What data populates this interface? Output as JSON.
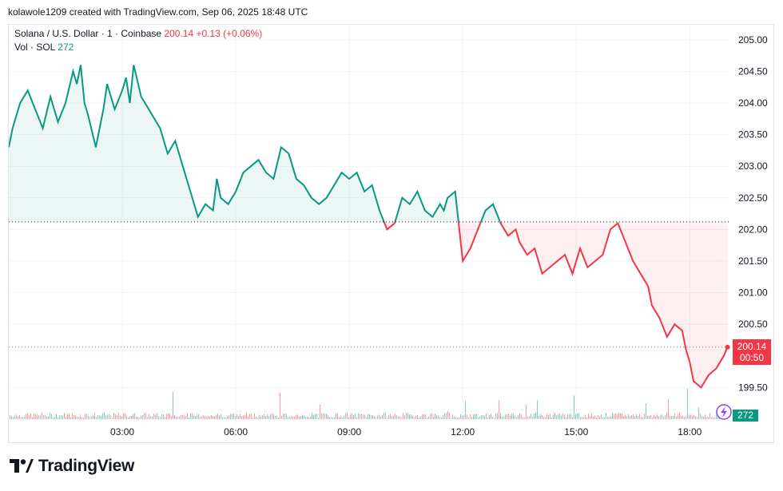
{
  "header": {
    "attribution": "kolawole1209 created with TradingView.com, Sep 06, 2025 18:48 UTC"
  },
  "legend": {
    "symbol": "Solana / U.S. Dollar · 1 · Coinbase",
    "last": "200.14",
    "change": "+0.13 (+0.06%)",
    "vol_label": "Vol · SOL",
    "vol_value": "272"
  },
  "price_tag": {
    "price": "200.14",
    "countdown": "00:50"
  },
  "volume_tag": "272",
  "logo": {
    "text": "TradingView"
  },
  "colors": {
    "up": "#089981",
    "down": "#f23645",
    "grid": "#f0f3fa"
  },
  "chart_data": {
    "type": "line",
    "ylim": [
      199.0,
      205.25
    ],
    "y_ticks": [
      "205.00",
      "204.50",
      "204.00",
      "203.50",
      "203.00",
      "202.50",
      "202.00",
      "201.50",
      "201.00",
      "200.50",
      "199.50"
    ],
    "y_tick_values": [
      205.0,
      204.5,
      204.0,
      203.5,
      203.0,
      202.5,
      202.0,
      201.5,
      201.0,
      200.5,
      199.5
    ],
    "x_ticks": [
      "03:00",
      "06:00",
      "09:00",
      "12:00",
      "15:00",
      "18:00"
    ],
    "x_tick_hours": [
      3,
      6,
      9,
      12,
      15,
      18
    ],
    "xlim_hours": [
      0.0,
      19.05
    ],
    "baseline": 202.12,
    "last_price": 200.14,
    "grid": true,
    "series": [
      {
        "x": [
          0.0,
          0.1,
          0.3,
          0.5,
          0.7,
          0.9,
          1.1,
          1.3,
          1.5,
          1.7,
          1.8,
          1.9,
          2.0,
          2.1,
          2.3,
          2.5,
          2.6,
          2.8,
          3.0,
          3.1,
          3.2,
          3.3,
          3.5,
          3.6,
          3.8,
          4.0,
          4.2,
          4.4,
          4.6,
          4.8,
          5.0,
          5.2,
          5.4,
          5.5,
          5.6,
          5.8,
          6.0,
          6.2,
          6.4,
          6.6,
          6.8,
          7.0,
          7.2,
          7.4,
          7.6,
          7.8,
          8.0,
          8.2,
          8.4,
          8.6,
          8.8,
          9.0,
          9.2,
          9.4,
          9.6,
          9.8,
          10.0,
          10.2,
          10.4,
          10.6,
          10.8,
          11.0,
          11.2,
          11.4,
          11.5,
          11.6,
          11.8,
          12.0,
          12.2,
          12.4,
          12.6,
          12.8,
          13.0,
          13.2,
          13.4,
          13.5,
          13.7,
          13.9,
          14.1,
          14.3,
          14.5,
          14.7,
          14.9,
          15.1,
          15.3,
          15.5,
          15.7,
          15.9,
          16.1,
          16.3,
          16.5,
          16.7,
          16.9,
          17.0,
          17.2,
          17.4,
          17.6,
          17.8,
          17.9,
          18.0,
          18.1,
          18.3,
          18.5,
          18.7,
          18.8,
          18.9,
          19.0
        ],
        "values": [
          203.3,
          203.6,
          204.0,
          204.2,
          203.9,
          203.6,
          204.1,
          203.7,
          204.0,
          204.5,
          204.3,
          204.6,
          204.0,
          203.8,
          203.3,
          203.9,
          204.3,
          203.9,
          204.2,
          204.4,
          204.0,
          204.6,
          204.1,
          204.0,
          203.8,
          203.6,
          203.2,
          203.4,
          203.0,
          202.6,
          202.2,
          202.4,
          202.3,
          202.8,
          202.5,
          202.4,
          202.6,
          202.9,
          203.0,
          203.1,
          202.9,
          202.8,
          203.3,
          203.2,
          202.8,
          202.7,
          202.5,
          202.4,
          202.5,
          202.7,
          202.9,
          202.8,
          202.9,
          202.6,
          202.7,
          202.3,
          202.0,
          202.1,
          202.5,
          202.4,
          202.6,
          202.3,
          202.2,
          202.4,
          202.3,
          202.5,
          202.6,
          201.5,
          201.7,
          202.0,
          202.3,
          202.4,
          202.1,
          201.9,
          202.0,
          201.8,
          201.6,
          201.7,
          201.3,
          201.4,
          201.5,
          201.6,
          201.3,
          201.7,
          201.4,
          201.5,
          201.6,
          202.0,
          202.1,
          201.8,
          201.5,
          201.3,
          201.1,
          200.8,
          200.6,
          200.3,
          200.5,
          200.4,
          200.1,
          199.9,
          199.6,
          199.5,
          199.7,
          199.8,
          199.9,
          200.0,
          200.14
        ]
      }
    ]
  }
}
